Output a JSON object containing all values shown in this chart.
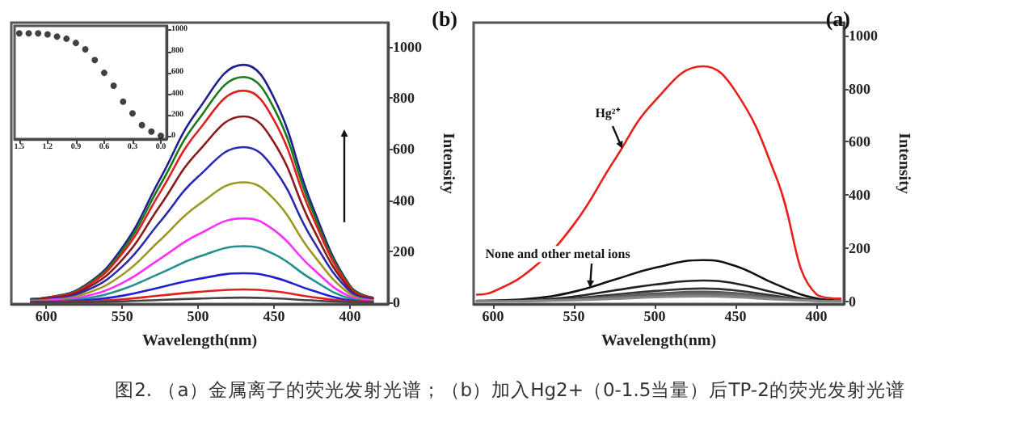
{
  "chart_data": [
    {
      "type": "line",
      "title": "(b)",
      "xlabel": "Wavelength(nm)",
      "ylabel": "Intensity",
      "marker": "none",
      "grid": false,
      "xlim": [
        623,
        375
      ],
      "ylim": [
        -6,
        1095
      ],
      "xticks": [
        600,
        550,
        500,
        450,
        400
      ],
      "yticks": [
        0,
        200,
        400,
        600,
        800,
        1000
      ],
      "x": [
        385,
        400,
        425,
        450,
        470,
        500,
        525,
        550,
        575,
        600,
        610
      ],
      "series": [
        {
          "color": "#1f1f8f",
          "values": [
            19,
            65,
            381,
            800,
            930,
            753,
            484,
            214,
            65,
            19,
            14
          ]
        },
        {
          "color": "#1a7a1a",
          "values": [
            18,
            62,
            362,
            759,
            882,
            714,
            459,
            203,
            62,
            18,
            13
          ]
        },
        {
          "color": "#e02020",
          "values": [
            17,
            58,
            340,
            713,
            829,
            671,
            431,
            191,
            58,
            17,
            12
          ]
        },
        {
          "color": "#8b1a1a",
          "values": [
            15,
            51,
            298,
            626,
            728,
            590,
            379,
            167,
            51,
            15,
            11
          ]
        },
        {
          "color": "#2a2ab0",
          "values": [
            12,
            43,
            249,
            523,
            608,
            492,
            316,
            140,
            43,
            12,
            9
          ]
        },
        {
          "color": "#9a9a20",
          "values": [
            9,
            33,
            193,
            404,
            470,
            381,
            244,
            108,
            33,
            9,
            7
          ]
        },
        {
          "color": "#ff30ff",
          "values": [
            7,
            23,
            135,
            283,
            329,
            266,
            171,
            76,
            23,
            7,
            5
          ]
        },
        {
          "color": "#209090",
          "values": [
            4,
            15,
            90,
            189,
            220,
            178,
            114,
            51,
            15,
            4,
            3
          ]
        },
        {
          "color": "#2020d0",
          "values": [
            2,
            8,
            47,
            98,
            114,
            92,
            59,
            26,
            8,
            2,
            2
          ]
        },
        {
          "color": "#e02020",
          "values": [
            1,
            4,
            21,
            44,
            51,
            41,
            27,
            12,
            4,
            1,
            1
          ]
        },
        {
          "color": "#444444",
          "values": [
            0,
            1,
            8,
            16,
            19,
            15,
            10,
            4,
            1,
            0,
            0
          ]
        }
      ]
    },
    {
      "type": "scatter",
      "marker": "circle",
      "grid": false,
      "xlim": [
        1.55,
        -0.06
      ],
      "ylim": [
        -20,
        1040
      ],
      "xticks": [
        1.5,
        1.2,
        0.9,
        0.6,
        0.3,
        {
          "value": 0,
          "label": "0.0"
        }
      ],
      "yticks": [
        0,
        200,
        400,
        600,
        800,
        1000
      ],
      "x": [
        1.5,
        1.4,
        1.3,
        1.2,
        1.1,
        1.0,
        0.9,
        0.8,
        0.7,
        0.6,
        0.5,
        0.4,
        0.3,
        0.2,
        0.1,
        0
      ],
      "series": [
        {
          "color": "#111111",
          "values": [
            970,
            970,
            970,
            960,
            940,
            920,
            880,
            820,
            720,
            600,
            480,
            330,
            220,
            110,
            50,
            10
          ]
        }
      ]
    },
    {
      "type": "line",
      "title": "(a)",
      "xlabel": "Wavelength(nm)",
      "ylabel": "Intensity",
      "marker": "none",
      "grid": false,
      "xlim": [
        612,
        383
      ],
      "ylim": [
        -10,
        1048
      ],
      "xticks": [
        600,
        550,
        500,
        450,
        400
      ],
      "yticks": [
        0,
        200,
        400,
        600,
        800,
        1000
      ],
      "x": [
        385,
        400,
        425,
        450,
        470,
        500,
        525,
        550,
        575,
        600,
        610
      ],
      "series": [
        {
          "color": "#111111",
          "values": [
            3,
            11,
            64,
            133,
            155,
            126,
            81,
            36,
            11,
            3,
            2
          ]
        },
        {
          "color": "#222222",
          "values": [
            2,
            5,
            32,
            67,
            78,
            63,
            41,
            18,
            5,
            2,
            1
          ]
        },
        {
          "color": "#333333",
          "values": [
            1,
            3,
            20,
            41,
            48,
            39,
            25,
            11,
            3,
            1,
            1
          ]
        },
        {
          "color": "#555555",
          "values": [
            1,
            3,
            15,
            31,
            36,
            29,
            19,
            8,
            3,
            1,
            1
          ]
        },
        {
          "color": "#666666",
          "values": [
            1,
            2,
            12,
            26,
            30,
            24,
            16,
            7,
            2,
            1,
            0
          ]
        },
        {
          "color": "#777777",
          "values": [
            0,
            2,
            10,
            21,
            24,
            19,
            12,
            6,
            2,
            0,
            0
          ]
        },
        {
          "color": "#888888",
          "values": [
            0,
            1,
            7,
            15,
            18,
            15,
            9,
            4,
            1,
            0,
            0
          ]
        },
        {
          "color": "#e8201c",
          "values": [
            10,
            27,
            470,
            790,
            884,
            753,
            530,
            289,
            127,
            36,
            25
          ]
        }
      ],
      "annotations": [
        {
          "text": "Hg²⁺",
          "x": 520,
          "y": 575
        },
        {
          "text": "None and other metal ions",
          "x": 540,
          "y": 50
        },
        "图2. （a）金属离子的荧光发射光谱；（b）加入Hg2+（0-1.5当量）后TP-2的荧光发射光谱"
      ]
    }
  ]
}
